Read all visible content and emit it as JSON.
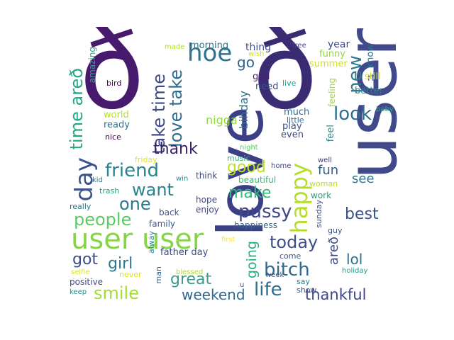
{
  "words": [
    {
      "text": "user",
      "color": "#404a8a"
    },
    {
      "text": "ð",
      "color": "#3a2b73"
    },
    {
      "text": "love",
      "color": "#3b3f85"
    },
    {
      "text": "ð",
      "color": "#471a6e"
    },
    {
      "text": "user user",
      "color": "#86d549"
    },
    {
      "text": "hoe",
      "color": "#2c718e"
    },
    {
      "text": "new",
      "color": "#2a7b8e"
    },
    {
      "text": "take time",
      "color": "#3e4a89"
    },
    {
      "text": "love take",
      "color": "#2f6b8e"
    },
    {
      "text": "day",
      "color": "#3b538b"
    },
    {
      "text": "time areð",
      "color": "#22a884"
    },
    {
      "text": "friend",
      "color": "#24868e"
    },
    {
      "text": "happy",
      "color": "#b5de2b"
    },
    {
      "text": "look",
      "color": "#2d708e"
    },
    {
      "text": "thank",
      "color": "#3b1f6b"
    },
    {
      "text": "want",
      "color": "#26828e"
    },
    {
      "text": "one",
      "color": "#2a788e"
    },
    {
      "text": "good",
      "color": "#bddf26"
    },
    {
      "text": "make",
      "color": "#35b779"
    },
    {
      "text": "people",
      "color": "#5ec962"
    },
    {
      "text": "pussy",
      "color": "#3f4788"
    },
    {
      "text": "today",
      "color": "#3d4e8a"
    },
    {
      "text": "best",
      "color": "#3b528b"
    },
    {
      "text": "bitch",
      "color": "#31688e"
    },
    {
      "text": "smile",
      "color": "#a5db36"
    },
    {
      "text": "girl",
      "color": "#2a788e"
    },
    {
      "text": "got",
      "color": "#3d4d8a"
    },
    {
      "text": "great",
      "color": "#3e9a8a"
    },
    {
      "text": "life",
      "color": "#2d708e"
    },
    {
      "text": "weekend",
      "color": "#31688e"
    },
    {
      "text": "thankful",
      "color": "#404588"
    },
    {
      "text": "lol",
      "color": "#2e6f8e"
    },
    {
      "text": "fun",
      "color": "#355f8d"
    },
    {
      "text": "see",
      "color": "#2a788e"
    },
    {
      "text": "going",
      "color": "#27ad81"
    },
    {
      "text": "areð",
      "color": "#3f4a8a"
    },
    {
      "text": "bihday",
      "color": "#2c728e"
    },
    {
      "text": "nigga",
      "color": "#94d741"
    },
    {
      "text": "go",
      "color": "#34618d"
    },
    {
      "text": "morning",
      "color": "#2c718e"
    },
    {
      "text": "thing",
      "color": "#3d4d8a"
    },
    {
      "text": "year",
      "color": "#3e4989"
    },
    {
      "text": "know",
      "color": "#2c718e"
    },
    {
      "text": "rt",
      "color": "#3f4889"
    },
    {
      "text": "still",
      "color": "#d2e21b"
    },
    {
      "text": "better",
      "color": "#26828e"
    },
    {
      "text": "funny",
      "color": "#90d743"
    },
    {
      "text": "summer",
      "color": "#d0e11c"
    },
    {
      "text": "feeling",
      "color": "#9fda3a"
    },
    {
      "text": "baby",
      "color": "#27ad81"
    },
    {
      "text": "god",
      "color": "#482374"
    },
    {
      "text": "need",
      "color": "#3b518b"
    },
    {
      "text": "live",
      "color": "#1f9e89"
    },
    {
      "text": "wish",
      "color": "#cde11d"
    },
    {
      "text": "free",
      "color": "#433e85"
    },
    {
      "text": "made",
      "color": "#b2dd2d"
    },
    {
      "text": "amazing",
      "color": "#22a884"
    },
    {
      "text": "bird",
      "color": "#440154"
    },
    {
      "text": "world",
      "color": "#b5de2b"
    },
    {
      "text": "ready",
      "color": "#2c728e"
    },
    {
      "text": "nice",
      "color": "#440154"
    },
    {
      "text": "much",
      "color": "#2e6f8e"
    },
    {
      "text": "little",
      "color": "#32658e"
    },
    {
      "text": "play",
      "color": "#3b528b"
    },
    {
      "text": "even",
      "color": "#3e4a89"
    },
    {
      "text": "feel",
      "color": "#25858e"
    },
    {
      "text": "night",
      "color": "#5ec962"
    },
    {
      "text": "music",
      "color": "#35b779"
    },
    {
      "text": "beautiful",
      "color": "#3aba76"
    },
    {
      "text": "home",
      "color": "#404688"
    },
    {
      "text": "well",
      "color": "#46337f"
    },
    {
      "text": "woman",
      "color": "#bddf26"
    },
    {
      "text": "work",
      "color": "#1fa187"
    },
    {
      "text": "sunday",
      "color": "#3d4e8a"
    },
    {
      "text": "guy",
      "color": "#3b528b"
    },
    {
      "text": "friday",
      "color": "#e5e419"
    },
    {
      "text": "win",
      "color": "#21918c"
    },
    {
      "text": "kid",
      "color": "#2a788e"
    },
    {
      "text": "trash",
      "color": "#22a884"
    },
    {
      "text": "think",
      "color": "#3e4a89"
    },
    {
      "text": "hope",
      "color": "#3e4a89"
    },
    {
      "text": "enjoy",
      "color": "#3f4788"
    },
    {
      "text": "really",
      "color": "#2a788e"
    },
    {
      "text": "back",
      "color": "#3b528b"
    },
    {
      "text": "family",
      "color": "#38598c"
    },
    {
      "text": "happiness",
      "color": "#31688e"
    },
    {
      "text": "alway",
      "color": "#26828e"
    },
    {
      "text": "father day",
      "color": "#3e4989"
    },
    {
      "text": "first",
      "color": "#fde725"
    },
    {
      "text": "come",
      "color": "#38598c"
    },
    {
      "text": "man",
      "color": "#32648e"
    },
    {
      "text": "selfie",
      "color": "#e2e418"
    },
    {
      "text": "never",
      "color": "#e5e419"
    },
    {
      "text": "positive",
      "color": "#3e4989"
    },
    {
      "text": "blessed",
      "color": "#aadc32"
    },
    {
      "text": "u",
      "color": "#3b528b"
    },
    {
      "text": "week",
      "color": "#3a548c"
    },
    {
      "text": "say",
      "color": "#25858e"
    },
    {
      "text": "show",
      "color": "#3b528b"
    },
    {
      "text": "holiday",
      "color": "#1f9e89"
    },
    {
      "text": "keep",
      "color": "#21918c"
    }
  ]
}
